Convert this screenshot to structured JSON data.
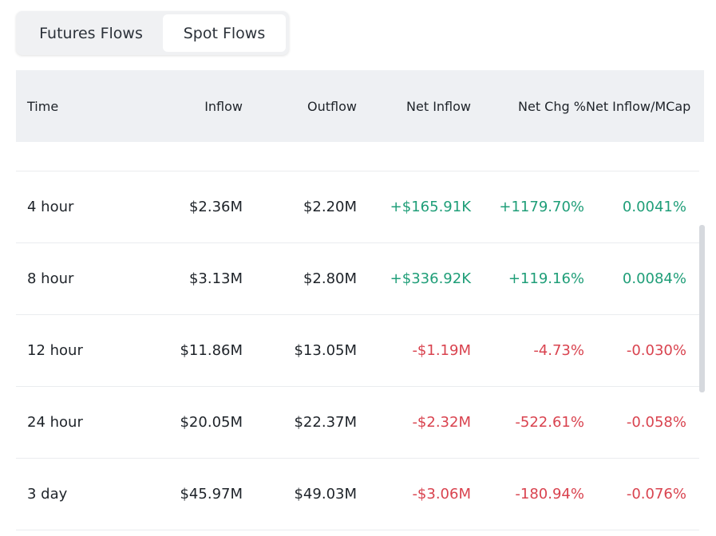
{
  "tabs": [
    {
      "label": "Futures Flows",
      "active": false
    },
    {
      "label": "Spot Flows",
      "active": true
    }
  ],
  "columns": [
    "Time",
    "Inflow",
    "Outflow",
    "Net Inflow",
    "Net Chg %",
    "Net Inflow/MCap"
  ],
  "rows": [
    {
      "time": "4 hour",
      "inflow": "$2.36M",
      "outflow": "$2.20M",
      "net_inflow": "+$165.91K",
      "net_chg": "+1179.70%",
      "mcap": "0.0041%",
      "trend": "pos"
    },
    {
      "time": "8 hour",
      "inflow": "$3.13M",
      "outflow": "$2.80M",
      "net_inflow": "+$336.92K",
      "net_chg": "+119.16%",
      "mcap": "0.0084%",
      "trend": "pos"
    },
    {
      "time": "12 hour",
      "inflow": "$11.86M",
      "outflow": "$13.05M",
      "net_inflow": "-$1.19M",
      "net_chg": "-4.73%",
      "mcap": "-0.030%",
      "trend": "neg"
    },
    {
      "time": "24 hour",
      "inflow": "$20.05M",
      "outflow": "$22.37M",
      "net_inflow": "-$2.32M",
      "net_chg": "-522.61%",
      "mcap": "-0.058%",
      "trend": "neg"
    },
    {
      "time": "3 day",
      "inflow": "$45.97M",
      "outflow": "$49.03M",
      "net_inflow": "-$3.06M",
      "net_chg": "-180.94%",
      "mcap": "-0.076%",
      "trend": "neg"
    }
  ],
  "colors": {
    "positive": "#1f9e78",
    "negative": "#d9434f"
  }
}
